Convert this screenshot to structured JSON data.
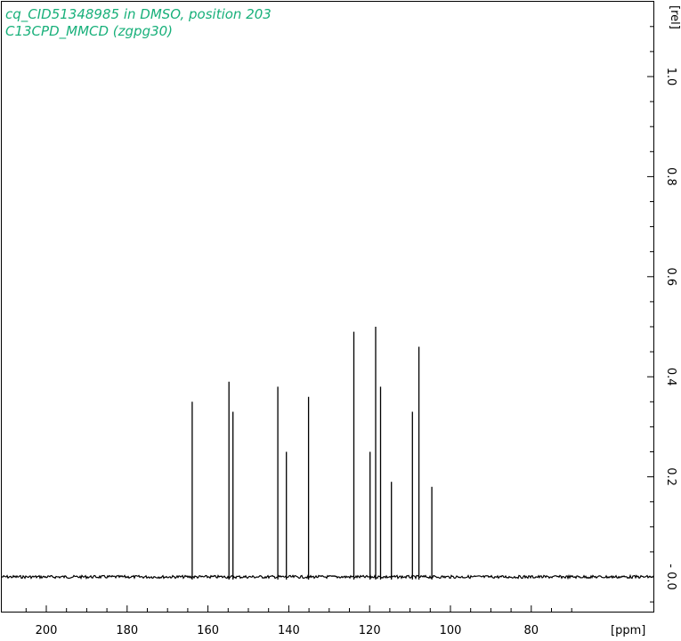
{
  "chart_data": {
    "type": "line",
    "title_lines": [
      "cq_CID51348985 in DMSO, position 203",
      "C13CPD_MMCD (zgpg30)"
    ],
    "xlabel": "[ppm]",
    "ylabel": "[rel]",
    "x_reversed": true,
    "xlim": [
      210,
      70
    ],
    "ylim": [
      -0.06,
      1.15
    ],
    "x_ticks": [
      200,
      180,
      160,
      140,
      120,
      100,
      80
    ],
    "y_ticks": [
      0.0,
      0.2,
      0.4,
      0.6,
      0.8,
      1.0
    ],
    "y_tick_labels": [
      "- 0.0",
      "0.2",
      "0.4",
      "0.6",
      "0.8",
      "1.0"
    ],
    "peaks": [
      {
        "ppm": 163.9,
        "intensity": 0.35
      },
      {
        "ppm": 154.8,
        "intensity": 0.39
      },
      {
        "ppm": 153.8,
        "intensity": 0.33
      },
      {
        "ppm": 142.7,
        "intensity": 0.38
      },
      {
        "ppm": 140.6,
        "intensity": 0.25
      },
      {
        "ppm": 135.1,
        "intensity": 0.36
      },
      {
        "ppm": 123.9,
        "intensity": 0.49
      },
      {
        "ppm": 119.9,
        "intensity": 0.25
      },
      {
        "ppm": 118.5,
        "intensity": 0.5
      },
      {
        "ppm": 117.3,
        "intensity": 0.38
      },
      {
        "ppm": 114.6,
        "intensity": 0.19
      },
      {
        "ppm": 109.4,
        "intensity": 0.33
      },
      {
        "ppm": 107.8,
        "intensity": 0.46
      },
      {
        "ppm": 104.6,
        "intensity": 0.18
      }
    ]
  }
}
